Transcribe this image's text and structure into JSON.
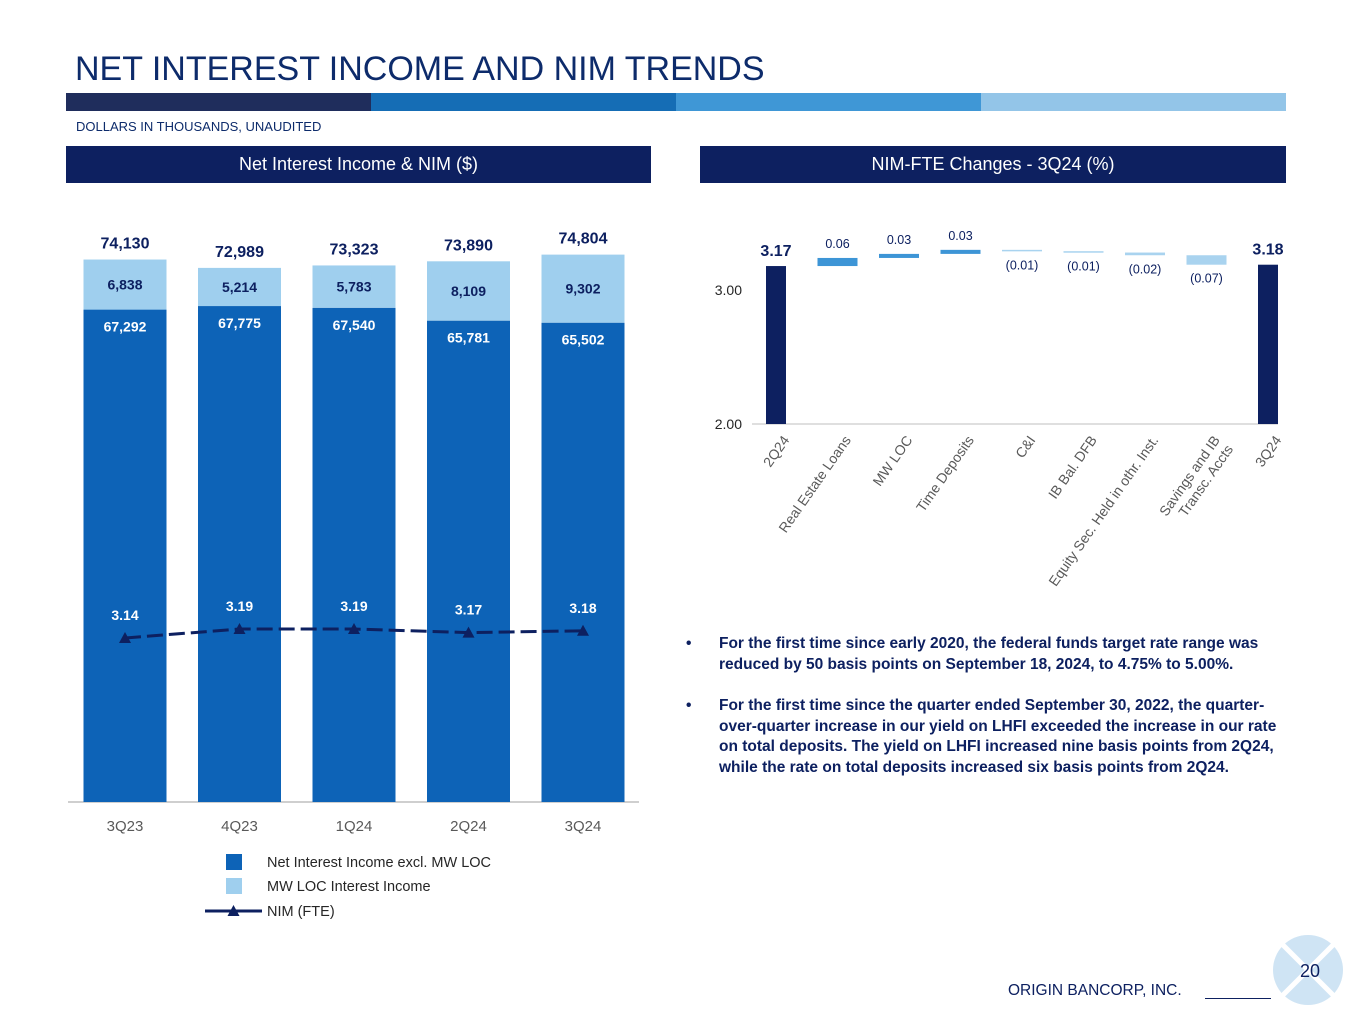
{
  "header": {
    "title": "NET INTEREST INCOME AND NIM TRENDS",
    "subtitle": "DOLLARS IN THOUSANDS, UNAUDITED",
    "stripe_colors": [
      "#1f2d5c",
      "#156db5",
      "#3f97d6",
      "#93c5e8"
    ]
  },
  "panels": {
    "left_title": "Net Interest Income & NIM ($)",
    "right_title": "NIM-FTE Changes - 3Q24 (%)"
  },
  "colors": {
    "dark_bar": "#0d63b7",
    "light_bar": "#9fcfee",
    "nim_line": "#0d2060",
    "navy": "#0d2060",
    "wf_up": "#3d95d6",
    "wf_down": "#a9d3ef",
    "axis": "#bfbfbf"
  },
  "chart_data": [
    {
      "type": "bar",
      "stacked": true,
      "title": "Net Interest Income & NIM ($)",
      "categories": [
        "3Q23",
        "4Q23",
        "1Q24",
        "2Q24",
        "3Q24"
      ],
      "series": [
        {
          "name": "Net Interest Income excl. MW LOC",
          "values": [
            67292,
            67775,
            67540,
            65781,
            65502
          ],
          "labels": [
            "67,292",
            "67,775",
            "67,540",
            "65,781",
            "65,502"
          ]
        },
        {
          "name": "MW LOC Interest Income",
          "values": [
            6838,
            5214,
            5783,
            8109,
            9302
          ],
          "labels": [
            "6,838",
            "5,214",
            "5,783",
            "8,109",
            "9,302"
          ]
        }
      ],
      "totals": [
        74130,
        72989,
        73323,
        73890,
        74804
      ],
      "total_labels": [
        "74,130",
        "72,989",
        "73,323",
        "73,890",
        "74,804"
      ],
      "nim_series": {
        "name": "NIM (FTE)",
        "values": [
          3.14,
          3.19,
          3.19,
          3.17,
          3.18
        ],
        "labels": [
          "3.14",
          "3.19",
          "3.19",
          "3.17",
          "3.18"
        ]
      },
      "ylim": [
        0,
        85000
      ],
      "legend": [
        {
          "name": "Net Interest Income excl. MW LOC",
          "kind": "dark"
        },
        {
          "name": "MW LOC Interest Income",
          "kind": "light"
        },
        {
          "name": "NIM (FTE)",
          "kind": "line"
        }
      ],
      "legend_position": "bottom"
    },
    {
      "type": "bar",
      "subtype": "waterfall",
      "title": "NIM-FTE Changes - 3Q24 (%)",
      "categories": [
        "2Q24",
        "Real Estate Loans",
        "MW LOC",
        "Time Deposits",
        "C&I",
        "IB Bal. DFB",
        "Equity Sec. Held in othr. Inst.",
        "Savings and IB Transc. Accts",
        "3Q24"
      ],
      "category_lines": [
        [
          "2Q24"
        ],
        [
          "Real Estate Loans"
        ],
        [
          "MW LOC"
        ],
        [
          "Time Deposits"
        ],
        [
          "C&I"
        ],
        [
          "IB Bal. DFB"
        ],
        [
          "Equity Sec. Held in othr. Inst."
        ],
        [
          "Savings and IB",
          "Transc. Accts"
        ],
        [
          "3Q24"
        ]
      ],
      "values": [
        3.17,
        0.06,
        0.03,
        0.03,
        -0.01,
        -0.01,
        -0.02,
        -0.07,
        3.18
      ],
      "value_labels": [
        "3.17",
        "0.06",
        "0.03",
        "0.03",
        "(0.01)",
        "(0.01)",
        "(0.02)",
        "(0.07)",
        "3.18"
      ],
      "is_total": [
        true,
        false,
        false,
        false,
        false,
        false,
        false,
        false,
        true
      ],
      "y_ticks": [
        "2.00",
        "3.00"
      ],
      "ylim": [
        2.0,
        3.2
      ]
    }
  ],
  "bullets": [
    "For the first time since early 2020, the federal funds target rate range was reduced by 50 basis points on September 18, 2024, to 4.75% to 5.00%.",
    "For the first time since the quarter ended September 30, 2022, the quarter-over-quarter increase in our yield on LHFI exceeded the increase in our rate on total deposits. The yield on LHFI increased nine basis points from 2Q24, while the rate on total deposits increased six basis points from 2Q24."
  ],
  "bullet_symbol": "•",
  "footer": {
    "company": "ORIGIN BANCORP, INC.",
    "page_number": "20"
  }
}
